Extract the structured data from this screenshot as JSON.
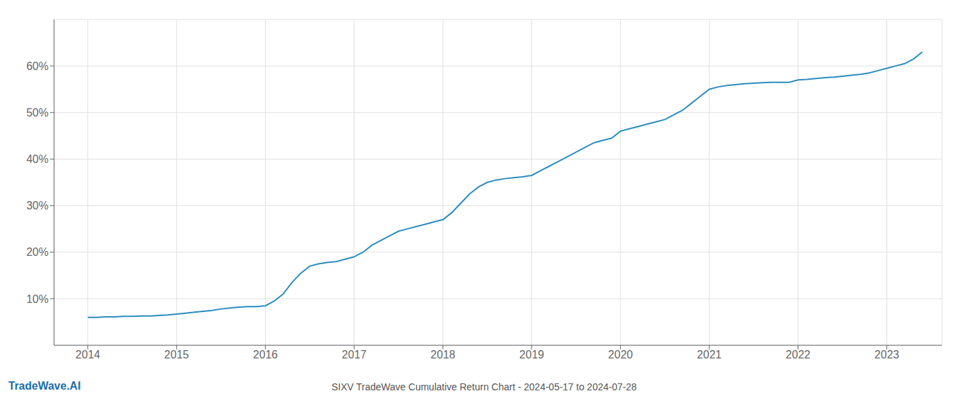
{
  "chart_data": {
    "type": "line",
    "title": "SIXV TradeWave Cumulative Return Chart - 2024-05-17 to 2024-07-28",
    "annotations": [
      {
        "text": "TradeWave.AI",
        "color": "#1a6fad"
      }
    ],
    "color": "#2b8cbf",
    "x": [
      2014.0,
      2014.1,
      2014.2,
      2014.3,
      2014.4,
      2014.5,
      2014.6,
      2014.7,
      2014.8,
      2014.9,
      2015.0,
      2015.1,
      2015.2,
      2015.3,
      2015.4,
      2015.5,
      2015.6,
      2015.7,
      2015.8,
      2015.9,
      2016.0,
      2016.1,
      2016.2,
      2016.3,
      2016.4,
      2016.5,
      2016.6,
      2016.7,
      2016.8,
      2016.9,
      2017.0,
      2017.1,
      2017.2,
      2017.3,
      2017.4,
      2017.5,
      2017.6,
      2017.7,
      2017.8,
      2017.9,
      2018.0,
      2018.1,
      2018.2,
      2018.3,
      2018.4,
      2018.5,
      2018.6,
      2018.7,
      2018.8,
      2018.9,
      2019.0,
      2019.1,
      2019.2,
      2019.3,
      2019.4,
      2019.5,
      2019.6,
      2019.7,
      2019.8,
      2019.9,
      2020.0,
      2020.1,
      2020.2,
      2020.3,
      2020.4,
      2020.5,
      2020.6,
      2020.7,
      2020.8,
      2020.9,
      2021.0,
      2021.1,
      2021.2,
      2021.3,
      2021.4,
      2021.5,
      2021.6,
      2021.7,
      2021.8,
      2021.9,
      2022.0,
      2022.1,
      2022.2,
      2022.3,
      2022.4,
      2022.5,
      2022.6,
      2022.7,
      2022.8,
      2022.9,
      2023.0,
      2023.1,
      2023.2,
      2023.3,
      2023.4
    ],
    "values": [
      6.0,
      6.0,
      6.1,
      6.1,
      6.2,
      6.2,
      6.3,
      6.3,
      6.4,
      6.5,
      6.7,
      6.9,
      7.1,
      7.3,
      7.5,
      7.8,
      8.0,
      8.2,
      8.3,
      8.3,
      8.5,
      9.5,
      11.0,
      13.5,
      15.5,
      17.0,
      17.5,
      17.8,
      18.0,
      18.5,
      19.0,
      20.0,
      21.5,
      22.5,
      23.5,
      24.5,
      25.0,
      25.5,
      26.0,
      26.5,
      27.0,
      28.5,
      30.5,
      32.5,
      34.0,
      35.0,
      35.5,
      35.8,
      36.0,
      36.2,
      36.5,
      37.5,
      38.5,
      39.5,
      40.5,
      41.5,
      42.5,
      43.5,
      44.0,
      44.5,
      46.0,
      46.5,
      47.0,
      47.5,
      48.0,
      48.5,
      49.5,
      50.5,
      52.0,
      53.5,
      55.0,
      55.5,
      55.8,
      56.0,
      56.2,
      56.3,
      56.4,
      56.5,
      56.5,
      56.5,
      57.0,
      57.1,
      57.3,
      57.5,
      57.6,
      57.8,
      58.0,
      58.2,
      58.5,
      59.0,
      59.5,
      60.0,
      60.5,
      61.5,
      63.0
    ],
    "xlim": [
      2013.62,
      2023.62
    ],
    "ylim": [
      0,
      70
    ],
    "xticks": [
      2014,
      2015,
      2016,
      2017,
      2018,
      2019,
      2020,
      2021,
      2022,
      2023
    ],
    "yticks": [
      {
        "value": 10,
        "label": "10%"
      },
      {
        "value": 20,
        "label": "20%"
      },
      {
        "value": 30,
        "label": "30%"
      },
      {
        "value": 40,
        "label": "40%"
      },
      {
        "value": 50,
        "label": "50%"
      },
      {
        "value": 60,
        "label": "60%"
      }
    ],
    "grid": true
  }
}
